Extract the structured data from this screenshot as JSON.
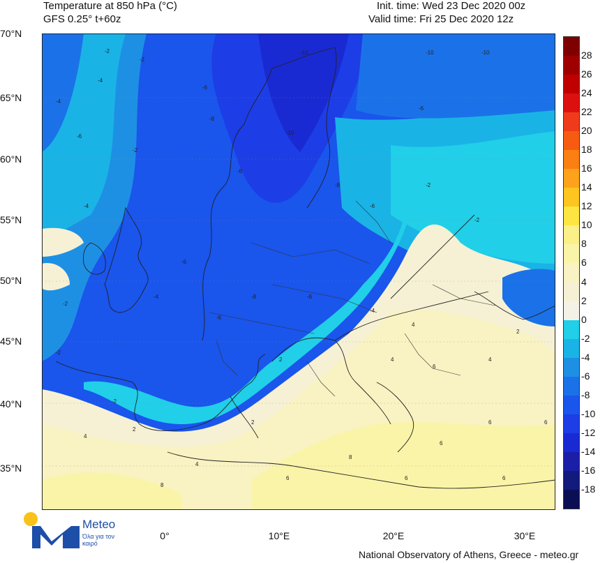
{
  "header": {
    "title": "Temperature at 850 hPa (°C)",
    "model": "GFS 0.25° t+60z",
    "init_time": "Init. time: Wed 23 Dec 2020 00z",
    "valid_time": "Valid time: Fri 25 Dec 2020 12z"
  },
  "map": {
    "lat_labels": [
      "70°N",
      "65°N",
      "60°N",
      "55°N",
      "50°N",
      "45°N",
      "40°N",
      "35°N"
    ],
    "lon_labels": [
      "0°",
      "10°E",
      "20°E",
      "30°E"
    ],
    "contour_labels": [
      "-2",
      "-4",
      "-6",
      "-8",
      "-10",
      "-12",
      "2",
      "4",
      "6",
      "8"
    ]
  },
  "colorbar": {
    "labels": [
      "28",
      "26",
      "24",
      "22",
      "20",
      "18",
      "16",
      "14",
      "12",
      "10",
      "8",
      "6",
      "4",
      "2",
      "0",
      "-2",
      "-4",
      "-6",
      "-8",
      "-10",
      "-12",
      "-14",
      "-16",
      "-18"
    ],
    "colors": [
      "#7f0000",
      "#9e0000",
      "#c00000",
      "#dd1010",
      "#ef3b1c",
      "#f75b12",
      "#fb7f12",
      "#fda21a",
      "#fdc51f",
      "#fde642",
      "#fbf088",
      "#faf4a8",
      "#f9f2c2",
      "#f6f1d4",
      "#f4f2e6",
      "#21cfe8",
      "#1ab3e6",
      "#1e90e4",
      "#1b72e8",
      "#1a55ec",
      "#1d3de6",
      "#1a2ad2",
      "#1b1ea6",
      "#121a7c",
      "#0a0f55"
    ]
  },
  "logo": {
    "name": "Meteo",
    "tagline": "Όλα για τον καιρό"
  },
  "credit": "National Observatory of Athens, Greece - meteo.gr"
}
